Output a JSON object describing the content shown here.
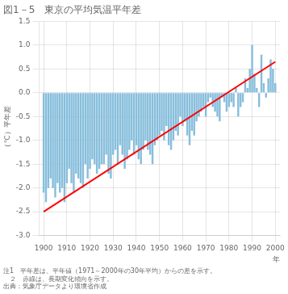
{
  "chart_data": {
    "type": "bar",
    "title": "図1－5　東京の平均気温平年差",
    "xlabel": "年",
    "ylabel": "（℃）平年差",
    "annotations": [
      "注1　平年差は、平年値（1971～2000年の30年平均）からの差を示す。",
      "　２　赤線は、長期変化傾向を示す。",
      "出典：気象庁データより環境省作成"
    ],
    "series": [
      {
        "type": "bar",
        "color": "#87BEDC",
        "x": [
          1900,
          1901,
          1902,
          1903,
          1904,
          1905,
          1906,
          1907,
          1908,
          1909,
          1910,
          1911,
          1912,
          1913,
          1914,
          1915,
          1916,
          1917,
          1918,
          1919,
          1920,
          1921,
          1922,
          1923,
          1924,
          1925,
          1926,
          1927,
          1928,
          1929,
          1930,
          1931,
          1932,
          1933,
          1934,
          1935,
          1936,
          1937,
          1938,
          1939,
          1940,
          1941,
          1942,
          1943,
          1944,
          1945,
          1946,
          1947,
          1948,
          1949,
          1950,
          1951,
          1952,
          1953,
          1954,
          1955,
          1956,
          1957,
          1958,
          1959,
          1960,
          1961,
          1962,
          1963,
          1964,
          1965,
          1966,
          1967,
          1968,
          1969,
          1970,
          1971,
          1972,
          1973,
          1974,
          1975,
          1976,
          1977,
          1978,
          1979,
          1980,
          1981,
          1982,
          1983,
          1984,
          1985,
          1986,
          1987,
          1988,
          1989,
          1990,
          1991,
          1992,
          1993,
          1994,
          1995,
          1996,
          1997,
          1998,
          1999,
          2000
        ],
        "values": [
          -2.1,
          -2.3,
          -2.0,
          -1.8,
          -2.0,
          -2.2,
          -1.9,
          -2.1,
          -2.0,
          -2.3,
          -1.9,
          -1.6,
          -1.9,
          -2.1,
          -1.7,
          -1.8,
          -1.9,
          -2.0,
          -1.5,
          -1.8,
          -1.6,
          -1.4,
          -1.5,
          -1.7,
          -1.6,
          -1.5,
          -1.5,
          -1.3,
          -1.7,
          -1.8,
          -1.3,
          -1.2,
          -1.5,
          -1.1,
          -1.3,
          -1.6,
          -1.4,
          -1.2,
          -1.0,
          -1.3,
          -1.1,
          -1.4,
          -1.5,
          -1.2,
          -1.0,
          -1.2,
          -1.3,
          -1.5,
          -1.1,
          -1.0,
          -0.9,
          -0.8,
          -1.0,
          -0.7,
          -1.1,
          -1.2,
          -1.0,
          -0.8,
          -0.9,
          -0.5,
          -0.7,
          -0.6,
          -0.9,
          -1.1,
          -0.8,
          -0.9,
          -0.6,
          -0.5,
          -0.4,
          -0.3,
          -0.5,
          -0.2,
          -0.1,
          -0.3,
          -0.4,
          -0.5,
          -0.6,
          -0.1,
          -0.2,
          -0.4,
          -0.3,
          -0.2,
          -0.3,
          0.1,
          -0.5,
          -0.3,
          -0.2,
          0.3,
          0.1,
          0.5,
          1.0,
          0.4,
          0.1,
          -0.3,
          0.8,
          0.2,
          -0.1,
          0.3,
          0.7,
          0.5,
          0.2
        ]
      },
      {
        "type": "line",
        "color": "#FF0000",
        "x": [
          1900,
          2000
        ],
        "values": [
          -2.5,
          0.65
        ]
      }
    ],
    "xlim": [
      1898,
      2002
    ],
    "xticks": [
      1900,
      1910,
      1920,
      1930,
      1940,
      1950,
      1960,
      1970,
      1980,
      1990,
      2000
    ],
    "ylim": [
      -3.0,
      1.5
    ],
    "yticks": [
      {
        "value": -3.0,
        "label": "-3.0"
      },
      {
        "value": -2.5,
        "label": "-2.5"
      },
      {
        "value": -2.0,
        "label": "-2.0"
      },
      {
        "value": -1.5,
        "label": "-1.5"
      },
      {
        "value": -1.0,
        "label": "-1.0"
      },
      {
        "value": -0.5,
        "label": "-0.5"
      },
      {
        "value": 0.0,
        "label": "0.0"
      },
      {
        "value": 0.5,
        "label": "0.5"
      },
      {
        "value": 1.0,
        "label": "1.0"
      },
      {
        "value": 1.5,
        "label": "1.5"
      }
    ],
    "grid": true
  }
}
